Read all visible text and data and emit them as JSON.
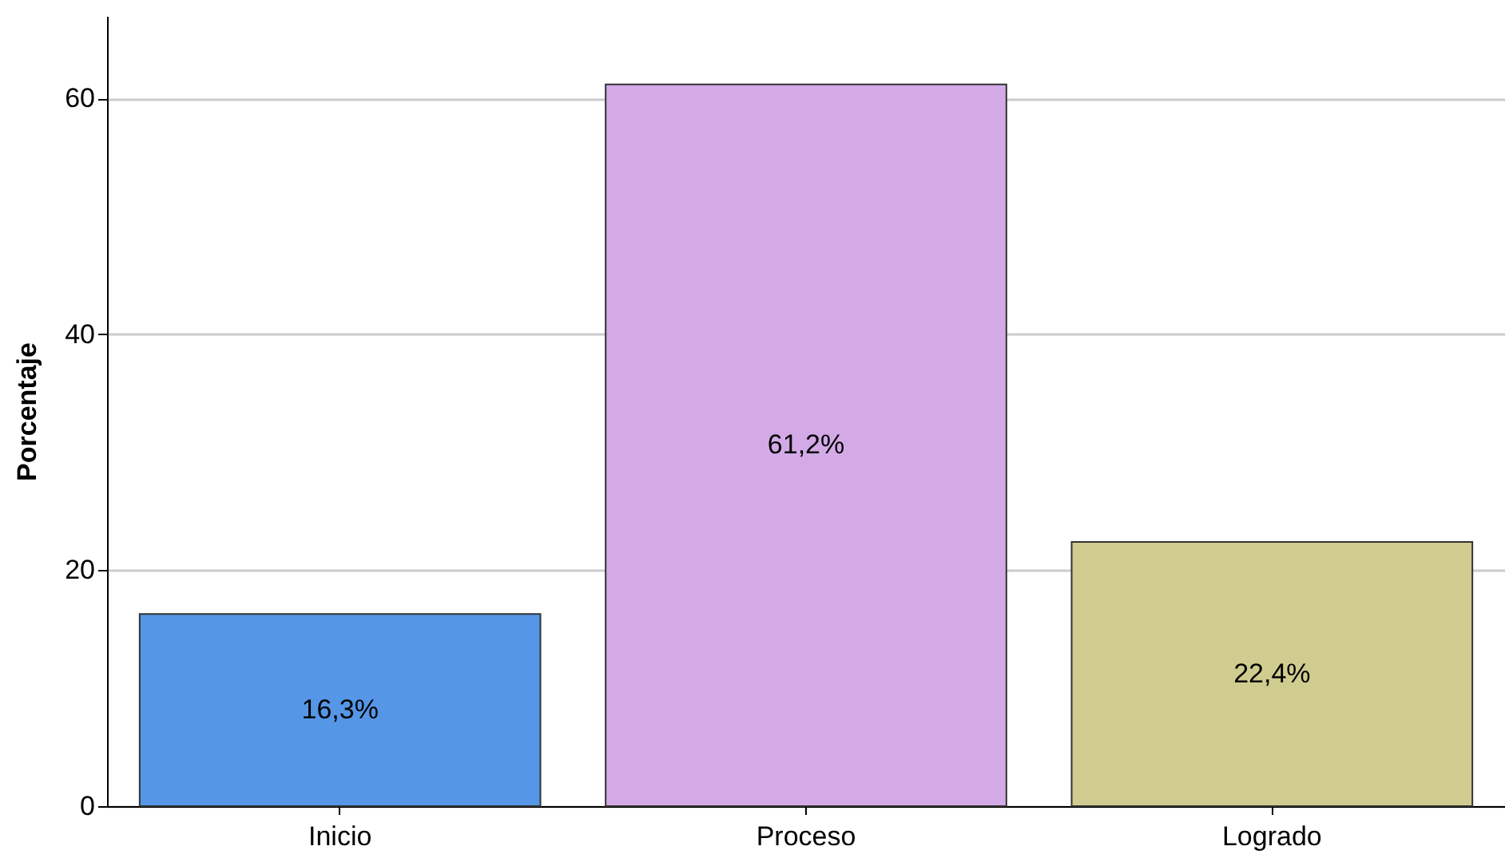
{
  "chart_data": {
    "type": "bar",
    "ylabel": "Porcentaje",
    "categories": [
      "Inicio",
      "Proceso",
      "Logrado"
    ],
    "values": [
      16.3,
      61.2,
      22.4
    ],
    "colors": [
      "#5596e6",
      "#d3aae6",
      "#d0cb8f"
    ],
    "value_labels": [
      "16,3%",
      "61,2%",
      "22,4%"
    ],
    "ylim": [
      0,
      67
    ],
    "yticks": [
      0,
      20,
      40,
      60
    ],
    "grid": "y"
  }
}
